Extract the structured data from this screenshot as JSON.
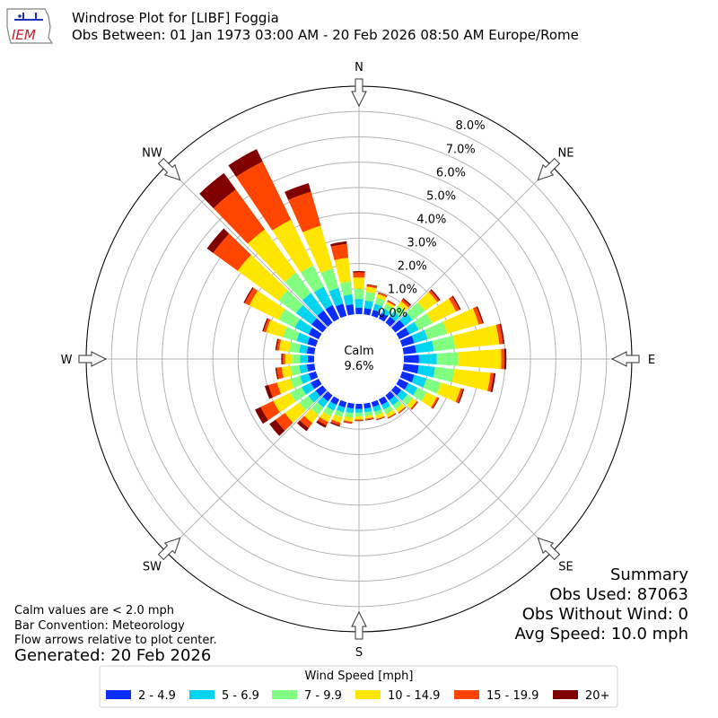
{
  "header": {
    "title": "Windrose Plot for [LIBF] Foggia",
    "subtitle": "Obs Between: 01 Jan 1973 03:00 AM - 20 Feb 2026 08:50 AM Europe/Rome",
    "logo_text": "IEM"
  },
  "calm": {
    "label": "Calm",
    "value": "9.6%"
  },
  "notes": [
    "Calm values are < 2.0 mph",
    "Bar Convention: Meteorology",
    "Flow arrows relative to plot center."
  ],
  "generated": "Generated: 20 Feb 2026",
  "summary": {
    "title": "Summary",
    "obs_used": "Obs Used: 87063",
    "obs_without_wind": "Obs Without Wind: 0",
    "avg_speed": "Avg Speed: 10.0 mph"
  },
  "legend": {
    "title": "Wind Speed [mph]",
    "placement": "bottom-center"
  },
  "colors": {
    "speed_bins": [
      "#0a2cff",
      "#00d4f0",
      "#80ff80",
      "#ffe600",
      "#ff4500",
      "#800000"
    ],
    "grid": "#b3b3b3"
  },
  "chart_data": {
    "type": "windrose",
    "radial_unit": "%",
    "radial_ticks": [
      "0.0%",
      "1.0%",
      "2.0%",
      "3.0%",
      "4.0%",
      "5.0%",
      "6.0%",
      "7.0%",
      "8.0%"
    ],
    "radial_max": 9.0,
    "compass_labels": [
      "N",
      "NE",
      "E",
      "SE",
      "S",
      "SW",
      "W",
      "NW"
    ],
    "speed_bins": [
      "2 - 4.9",
      "5 - 6.9",
      "7 - 9.9",
      "10 - 14.9",
      "15 - 19.9",
      "20+"
    ],
    "directions_deg": [
      0,
      10,
      20,
      30,
      40,
      50,
      60,
      70,
      80,
      90,
      100,
      110,
      120,
      130,
      140,
      150,
      160,
      170,
      180,
      190,
      200,
      210,
      220,
      230,
      240,
      250,
      260,
      270,
      280,
      290,
      300,
      310,
      320,
      330,
      340,
      350
    ],
    "cumulative": [
      [
        0.25,
        0.6,
        1.0,
        1.45,
        1.65,
        1.7
      ],
      [
        0.25,
        0.55,
        0.9,
        1.1,
        1.17,
        1.2
      ],
      [
        0.25,
        0.5,
        0.75,
        0.9,
        0.95,
        0.97
      ],
      [
        0.25,
        0.45,
        0.65,
        0.75,
        0.8,
        0.82
      ],
      [
        0.3,
        0.55,
        0.85,
        1.05,
        1.15,
        1.2
      ],
      [
        0.45,
        0.85,
        1.45,
        2.05,
        2.15,
        2.2
      ],
      [
        0.45,
        0.85,
        1.45,
        2.5,
        2.65,
        2.7
      ],
      [
        0.5,
        1.05,
        1.85,
        3.15,
        3.3,
        3.35
      ],
      [
        0.5,
        1.2,
        2.05,
        3.8,
        3.95,
        4.0
      ],
      [
        0.6,
        1.3,
        2.15,
        3.85,
        3.98,
        4.05
      ],
      [
        0.6,
        1.25,
        2.0,
        3.45,
        3.58,
        3.65
      ],
      [
        0.5,
        1.0,
        1.6,
        2.4,
        2.5,
        2.55
      ],
      [
        0.4,
        0.8,
        1.2,
        1.65,
        1.72,
        1.75
      ],
      [
        0.3,
        0.6,
        0.85,
        1.05,
        1.1,
        1.12
      ],
      [
        0.25,
        0.5,
        0.7,
        0.85,
        0.88,
        0.9
      ],
      [
        0.25,
        0.45,
        0.65,
        0.8,
        0.83,
        0.85
      ],
      [
        0.2,
        0.4,
        0.55,
        0.7,
        0.73,
        0.75
      ],
      [
        0.2,
        0.35,
        0.5,
        0.6,
        0.65,
        0.67
      ],
      [
        0.2,
        0.35,
        0.5,
        0.62,
        0.66,
        0.68
      ],
      [
        0.2,
        0.38,
        0.55,
        0.72,
        0.78,
        0.8
      ],
      [
        0.22,
        0.42,
        0.62,
        0.85,
        0.95,
        1.0
      ],
      [
        0.25,
        0.5,
        0.75,
        1.0,
        1.15,
        1.25
      ],
      [
        0.3,
        0.6,
        0.95,
        1.35,
        1.6,
        1.75
      ],
      [
        0.35,
        0.7,
        1.15,
        1.85,
        2.3,
        2.6
      ],
      [
        0.35,
        0.75,
        1.25,
        2.0,
        2.55,
        2.8
      ],
      [
        0.3,
        0.65,
        1.05,
        1.6,
        1.95,
        2.1
      ],
      [
        0.3,
        0.6,
        0.95,
        1.3,
        1.5,
        1.55
      ],
      [
        0.25,
        0.55,
        0.85,
        1.15,
        1.25,
        1.3
      ],
      [
        0.3,
        0.6,
        1.0,
        1.4,
        1.5,
        1.55
      ],
      [
        0.35,
        0.8,
        1.35,
        2.05,
        2.15,
        2.2
      ],
      [
        0.45,
        1.05,
        1.75,
        3.05,
        3.25,
        3.3
      ],
      [
        0.55,
        1.3,
        2.15,
        4.15,
        5.35,
        5.65
      ],
      [
        0.6,
        1.45,
        2.45,
        4.55,
        6.5,
        7.3
      ],
      [
        0.6,
        1.4,
        2.35,
        4.35,
        6.9,
        7.45
      ],
      [
        0.5,
        1.15,
        1.95,
        3.7,
        5.1,
        5.45
      ],
      [
        0.4,
        0.8,
        1.3,
        2.25,
        2.8,
        2.9
      ]
    ]
  }
}
